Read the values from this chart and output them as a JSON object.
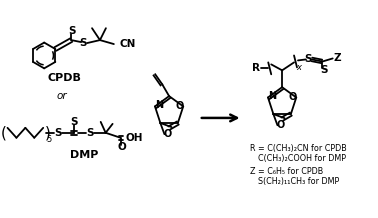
{
  "bg_color": "#ffffff",
  "text_color": "#000000",
  "figsize": [
    3.78,
    2.18
  ],
  "dpi": 100,
  "cpdb_label": "CPDB",
  "dmp_label": "DMP",
  "or_text": "or",
  "r_line1": "R = C(CH₃)₂CN for CPDB",
  "r_line2": "C(CH₃)₂COOH for DMP",
  "z_line1": "Z = C₆H₅ for CPDB",
  "z_line2": "S(CH₂)₁₁CH₃ for DMP"
}
